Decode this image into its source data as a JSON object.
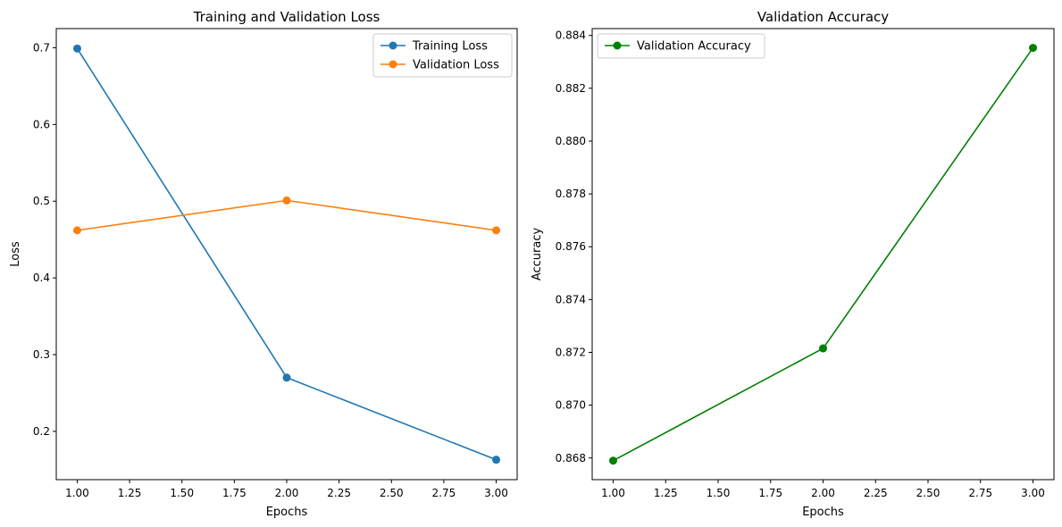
{
  "chart_data": [
    {
      "type": "line",
      "title": "Training and Validation Loss",
      "xlabel": "Epochs",
      "ylabel": "Loss",
      "xlim": [
        0.9,
        3.1
      ],
      "ylim": [
        0.137,
        0.725
      ],
      "xticks": [
        1.0,
        1.25,
        1.5,
        1.75,
        2.0,
        2.25,
        2.5,
        2.75,
        3.0
      ],
      "xtick_labels": [
        "1.00",
        "1.25",
        "1.50",
        "1.75",
        "2.00",
        "2.25",
        "2.50",
        "2.75",
        "3.00"
      ],
      "yticks": [
        0.2,
        0.3,
        0.4,
        0.5,
        0.6,
        0.7
      ],
      "ytick_labels": [
        "0.2",
        "0.3",
        "0.4",
        "0.5",
        "0.6",
        "0.7"
      ],
      "grid": false,
      "legend_position": "top-right",
      "x": [
        1,
        2,
        3
      ],
      "series": [
        {
          "name": "Training Loss",
          "color": "#1f77b4",
          "values": [
            0.699,
            0.27,
            0.163
          ]
        },
        {
          "name": "Validation Loss",
          "color": "#ff7f0e",
          "values": [
            0.462,
            0.501,
            0.462
          ]
        }
      ]
    },
    {
      "type": "line",
      "title": "Validation Accuracy",
      "xlabel": "Epochs",
      "ylabel": "Accuracy",
      "xlim": [
        0.9,
        3.1
      ],
      "ylim": [
        0.86718,
        0.88426
      ],
      "xticks": [
        1.0,
        1.25,
        1.5,
        1.75,
        2.0,
        2.25,
        2.5,
        2.75,
        3.0
      ],
      "xtick_labels": [
        "1.00",
        "1.25",
        "1.50",
        "1.75",
        "2.00",
        "2.25",
        "2.50",
        "2.75",
        "3.00"
      ],
      "yticks": [
        0.868,
        0.87,
        0.872,
        0.874,
        0.876,
        0.878,
        0.88,
        0.882,
        0.884
      ],
      "ytick_labels": [
        "0.868",
        "0.870",
        "0.872",
        "0.874",
        "0.876",
        "0.878",
        "0.880",
        "0.882",
        "0.884"
      ],
      "grid": false,
      "legend_position": "top-left",
      "x": [
        1,
        2,
        3
      ],
      "series": [
        {
          "name": "Validation Accuracy",
          "color": "#008000",
          "values": [
            0.8679,
            0.87215,
            0.88353
          ]
        }
      ]
    }
  ]
}
